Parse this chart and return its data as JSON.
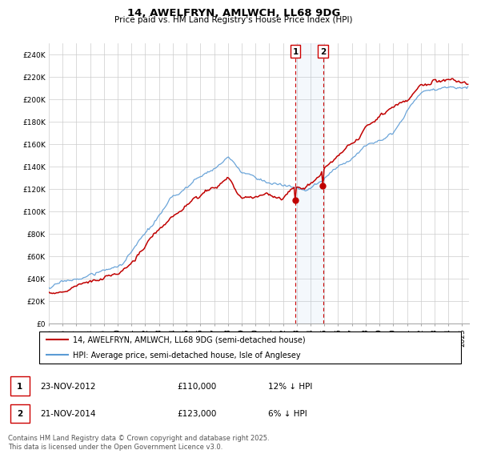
{
  "title": "14, AWELFRYN, AMLWCH, LL68 9DG",
  "subtitle": "Price paid vs. HM Land Registry's House Price Index (HPI)",
  "ylim": [
    0,
    250000
  ],
  "yticks": [
    0,
    20000,
    40000,
    60000,
    80000,
    100000,
    120000,
    140000,
    160000,
    180000,
    200000,
    220000,
    240000
  ],
  "ytick_labels": [
    "£0",
    "£20K",
    "£40K",
    "£60K",
    "£80K",
    "£100K",
    "£120K",
    "£140K",
    "£160K",
    "£180K",
    "£200K",
    "£220K",
    "£240K"
  ],
  "hpi_color": "#5b9bd5",
  "price_color": "#c00000",
  "sale1_x": 2012.9,
  "sale1_y": 110000,
  "sale2_x": 2014.9,
  "sale2_y": 123000,
  "legend_line1": "14, AWELFRYN, AMLWCH, LL68 9DG (semi-detached house)",
  "legend_line2": "HPI: Average price, semi-detached house, Isle of Anglesey",
  "footer": "Contains HM Land Registry data © Crown copyright and database right 2025.\nThis data is licensed under the Open Government Licence v3.0.",
  "xmin": 1995,
  "xmax": 2025.5,
  "title_fontsize": 9.5,
  "subtitle_fontsize": 7.5,
  "tick_fontsize": 6.5,
  "legend_fontsize": 7.0,
  "annot_fontsize": 7.5,
  "footer_fontsize": 6.0
}
